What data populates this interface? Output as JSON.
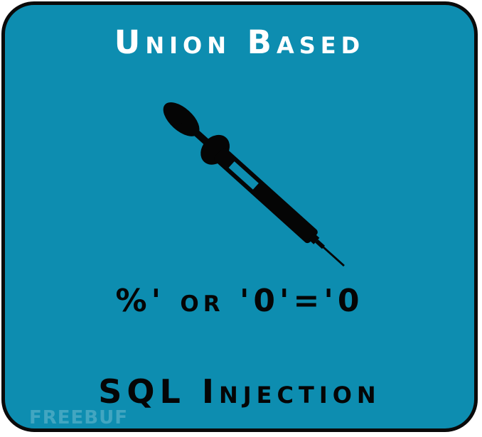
{
  "title": "Union Based",
  "payload": "%' or '0'='0",
  "footer": "SQL Injection",
  "watermark": "FREEBUF",
  "icons": {
    "main": "syringe-icon"
  },
  "colors": {
    "background": "#0d8db0",
    "border": "#0a0a0a",
    "title_text": "#ffffff",
    "body_text": "#050505"
  }
}
